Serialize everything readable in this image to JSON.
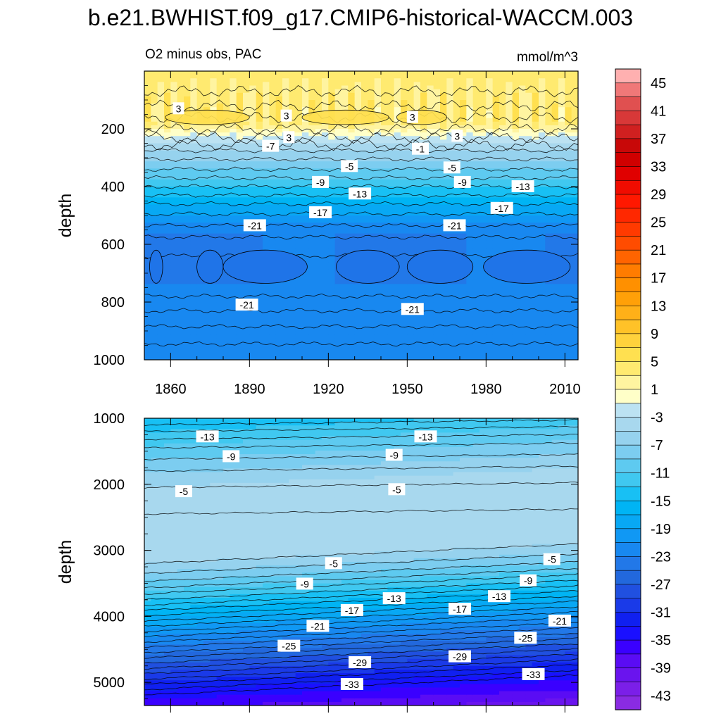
{
  "title": "b.e21.BWHIST.f09_g17.CMIP6-historical-WACCM.003",
  "chart_data": {
    "type": "heatmap",
    "title": "b.e21.BWHIST.f09_g17.CMIP6-historical-WACCM.003",
    "subtitle_left": "O2 minus obs, PAC",
    "subtitle_right": "mmol/m^3",
    "x_range": [
      1850,
      2015
    ],
    "colorbar": {
      "levels": [
        -45,
        -43,
        -41,
        -39,
        -37,
        -35,
        -33,
        -31,
        -29,
        -27,
        -25,
        -23,
        -21,
        -19,
        -17,
        -15,
        -13,
        -11,
        -9,
        -7,
        -5,
        -3,
        -1,
        1,
        3,
        5,
        7,
        9,
        11,
        13,
        15,
        17,
        19,
        21,
        23,
        25,
        27,
        29,
        31,
        33,
        35,
        37,
        39,
        41,
        43,
        45,
        47
      ],
      "tick_labels": [
        "45",
        "41",
        "37",
        "33",
        "29",
        "25",
        "21",
        "17",
        "13",
        "9",
        "5",
        "1",
        "-3",
        "-7",
        "-11",
        "-15",
        "-19",
        "-23",
        "-27",
        "-31",
        "-35",
        "-39",
        "-43"
      ],
      "colors_low_to_high": [
        "#8a2be2",
        "#7b1fe8",
        "#6a14ee",
        "#5a0cf4",
        "#3a00ff",
        "#1a10ff",
        "#1020f0",
        "#1a3ae8",
        "#2050e0",
        "#2268dd",
        "#2278e8",
        "#1888f0",
        "#1098f4",
        "#08a8f4",
        "#00b4f4",
        "#18c0f4",
        "#40c8f0",
        "#5ecaf0",
        "#7ccdf0",
        "#96d2ee",
        "#a8d8ee",
        "#bce2f2",
        "#ffffc8",
        "#fff4a0",
        "#ffea70",
        "#ffe050",
        "#ffd23c",
        "#ffc228",
        "#ffb018",
        "#ffa008",
        "#ff9000",
        "#ff7c00",
        "#ff6400",
        "#ff4c00",
        "#ff3a00",
        "#ff2800",
        "#ff1800",
        "#f00c00",
        "#e00000",
        "#d00000",
        "#c80808",
        "#d02020",
        "#d83838",
        "#e05050",
        "#f07878",
        "#ffb0b0"
      ]
    },
    "panels": [
      {
        "name": "upper",
        "ylabel": "depth",
        "y_range": [
          0,
          1000
        ],
        "y_reversed": true,
        "y_ticks": [
          200,
          400,
          600,
          800,
          1000
        ],
        "x_ticks": [
          1860,
          1890,
          1920,
          1950,
          1980,
          2010
        ],
        "contour_depths": [
          70,
          120,
          160,
          200,
          230,
          255,
          275,
          305,
          340,
          370,
          400,
          430,
          460,
          495,
          535,
          575,
          640,
          780,
          830,
          885,
          945
        ],
        "contour_labels": [
          {
            "text": "3",
            "x": 1863,
            "y": 130
          },
          {
            "text": "3",
            "x": 1904,
            "y": 155
          },
          {
            "text": "3",
            "x": 1952,
            "y": 160
          },
          {
            "text": "3",
            "x": 1905,
            "y": 230
          },
          {
            "text": "3",
            "x": 1969,
            "y": 225
          },
          {
            "text": "-7",
            "x": 1898,
            "y": 260
          },
          {
            "text": "-1",
            "x": 1955,
            "y": 270
          },
          {
            "text": "-5",
            "x": 1928,
            "y": 330
          },
          {
            "text": "-5",
            "x": 1967,
            "y": 335
          },
          {
            "text": "-9",
            "x": 1917,
            "y": 385
          },
          {
            "text": "-9",
            "x": 1971,
            "y": 385
          },
          {
            "text": "-13",
            "x": 1932,
            "y": 425
          },
          {
            "text": "-13",
            "x": 1994,
            "y": 400
          },
          {
            "text": "-17",
            "x": 1917,
            "y": 490
          },
          {
            "text": "-17",
            "x": 1986,
            "y": 475
          },
          {
            "text": "-21",
            "x": 1892,
            "y": 535
          },
          {
            "text": "-21",
            "x": 1968,
            "y": 535
          },
          {
            "text": "-21",
            "x": 1889,
            "y": 810
          },
          {
            "text": "-21",
            "x": 1952,
            "y": 825
          }
        ]
      },
      {
        "name": "lower",
        "ylabel": "depth",
        "y_range": [
          1000,
          5350
        ],
        "y_reversed": true,
        "y_ticks": [
          1000,
          2000,
          3000,
          4000,
          5000
        ],
        "contour_depths": [
          1100,
          1200,
          1320,
          1450,
          1620,
          1800,
          2050,
          2450,
          3200,
          3350,
          3470,
          3570,
          3660,
          3750,
          3830,
          3910,
          3990,
          4070,
          4150,
          4230,
          4310,
          4390,
          4470,
          4550,
          4630,
          4710,
          4790,
          4870,
          4950,
          5030,
          5110,
          5190
        ],
        "contour_labels": [
          {
            "text": "-13",
            "x": 1874,
            "y": 1280
          },
          {
            "text": "-13",
            "x": 1957,
            "y": 1280
          },
          {
            "text": "-9",
            "x": 1883,
            "y": 1580
          },
          {
            "text": "-9",
            "x": 1945,
            "y": 1560
          },
          {
            "text": "-5",
            "x": 1865,
            "y": 2110
          },
          {
            "text": "-5",
            "x": 1946,
            "y": 2080
          },
          {
            "text": "-5",
            "x": 1922,
            "y": 3200
          },
          {
            "text": "-5",
            "x": 2005,
            "y": 3140
          },
          {
            "text": "-9",
            "x": 1911,
            "y": 3510
          },
          {
            "text": "-9",
            "x": 1996,
            "y": 3460
          },
          {
            "text": "-13",
            "x": 1945,
            "y": 3730
          },
          {
            "text": "-13",
            "x": 1985,
            "y": 3700
          },
          {
            "text": "-17",
            "x": 1929,
            "y": 3910
          },
          {
            "text": "-17",
            "x": 1970,
            "y": 3890
          },
          {
            "text": "-21",
            "x": 1916,
            "y": 4150
          },
          {
            "text": "-21",
            "x": 2008,
            "y": 4070
          },
          {
            "text": "-25",
            "x": 1905,
            "y": 4450
          },
          {
            "text": "-25",
            "x": 1995,
            "y": 4330
          },
          {
            "text": "-29",
            "x": 1932,
            "y": 4700
          },
          {
            "text": "-29",
            "x": 1970,
            "y": 4610
          },
          {
            "text": "-33",
            "x": 1929,
            "y": 5030
          },
          {
            "text": "-33",
            "x": 1998,
            "y": 4880
          }
        ]
      }
    ]
  }
}
